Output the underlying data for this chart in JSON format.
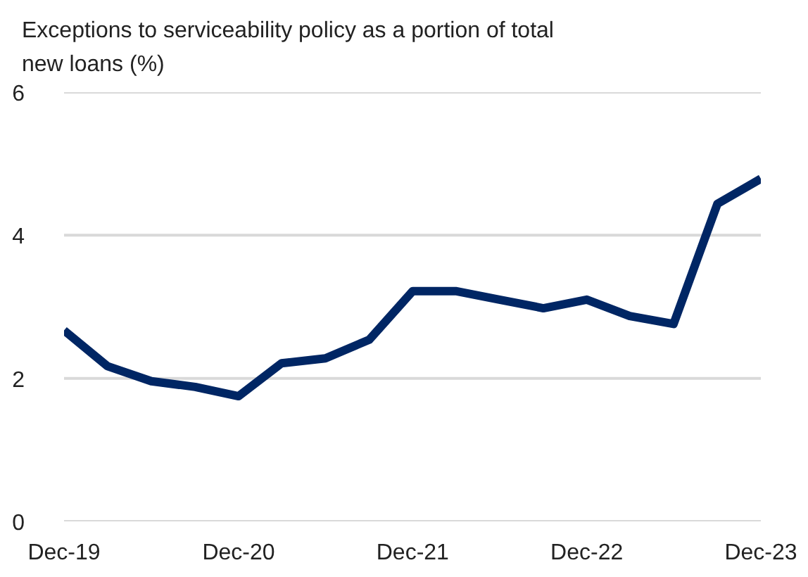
{
  "chart_data": {
    "type": "line",
    "title": "Exceptions to serviceability policy as a portion of total new loans (%)",
    "x": [
      "2019-12",
      "2020-03",
      "2020-06",
      "2020-09",
      "2020-12",
      "2021-03",
      "2021-06",
      "2021-09",
      "2021-12",
      "2022-03",
      "2022-06",
      "2022-09",
      "2022-12",
      "2023-03",
      "2023-06",
      "2023-09",
      "2023-12"
    ],
    "series": [
      {
        "color": "#002664",
        "values": [
          2.67,
          2.17,
          1.96,
          1.88,
          1.75,
          2.21,
          2.28,
          2.54,
          3.22,
          3.22,
          3.1,
          2.98,
          3.1,
          2.87,
          2.76,
          4.44,
          4.79
        ]
      }
    ],
    "xlim": [
      "2019-12",
      "2023-12"
    ],
    "xticks": [
      {
        "value": "2019-12",
        "label": "Dec-19"
      },
      {
        "value": "2020-12",
        "label": "Dec-20"
      },
      {
        "value": "2021-12",
        "label": "Dec-21"
      },
      {
        "value": "2022-12",
        "label": "Dec-22"
      },
      {
        "value": "2023-12",
        "label": "Dec-23"
      }
    ],
    "ylim": [
      0,
      6
    ],
    "yticks": [
      0,
      2,
      4,
      6
    ],
    "grid": "y",
    "marker": "none",
    "line_style": "solid"
  }
}
